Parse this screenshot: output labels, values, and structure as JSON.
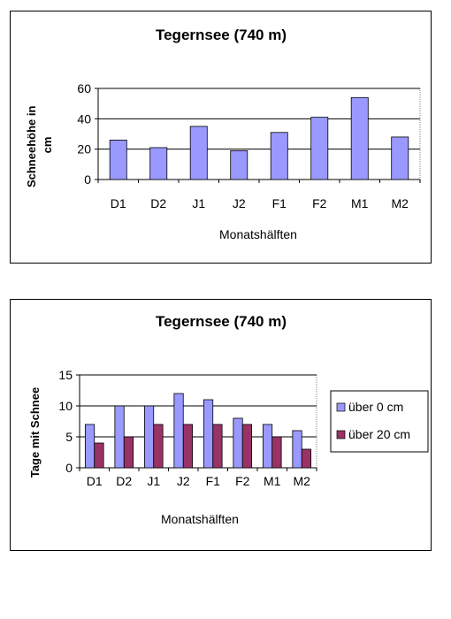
{
  "chart_data": [
    {
      "type": "bar",
      "title": "Tegernsee (740 m)",
      "xlabel": "Monatshälften",
      "ylabel": "Schneehöhe in cm",
      "categories": [
        "D1",
        "D2",
        "J1",
        "J2",
        "F1",
        "F2",
        "M1",
        "M2"
      ],
      "series": [
        {
          "values": [
            26,
            21,
            35,
            19,
            31,
            41,
            54,
            28
          ]
        }
      ],
      "ylim": [
        0,
        60
      ],
      "yticks": [
        0,
        20,
        40,
        60
      ],
      "grid": true,
      "colors": {
        "bar": "#9999ff",
        "plot_bg": "#ffffff"
      }
    },
    {
      "type": "bar",
      "title": "Tegernsee (740 m)",
      "xlabel": "Monatshälften",
      "ylabel": "Tage mit Schnee",
      "categories": [
        "D1",
        "D2",
        "J1",
        "J2",
        "F1",
        "F2",
        "M1",
        "M2"
      ],
      "series": [
        {
          "name": "über 0 cm",
          "values": [
            7,
            10,
            10,
            12,
            11,
            8,
            7,
            6
          ]
        },
        {
          "name": "über 20 cm",
          "values": [
            4,
            5,
            7,
            7,
            7,
            7,
            5,
            3
          ]
        }
      ],
      "ylim": [
        0,
        15
      ],
      "yticks": [
        0,
        5,
        10,
        15
      ],
      "grid": true,
      "legend": "right",
      "colors": {
        "series": [
          "#9999ff",
          "#993366"
        ]
      }
    }
  ]
}
